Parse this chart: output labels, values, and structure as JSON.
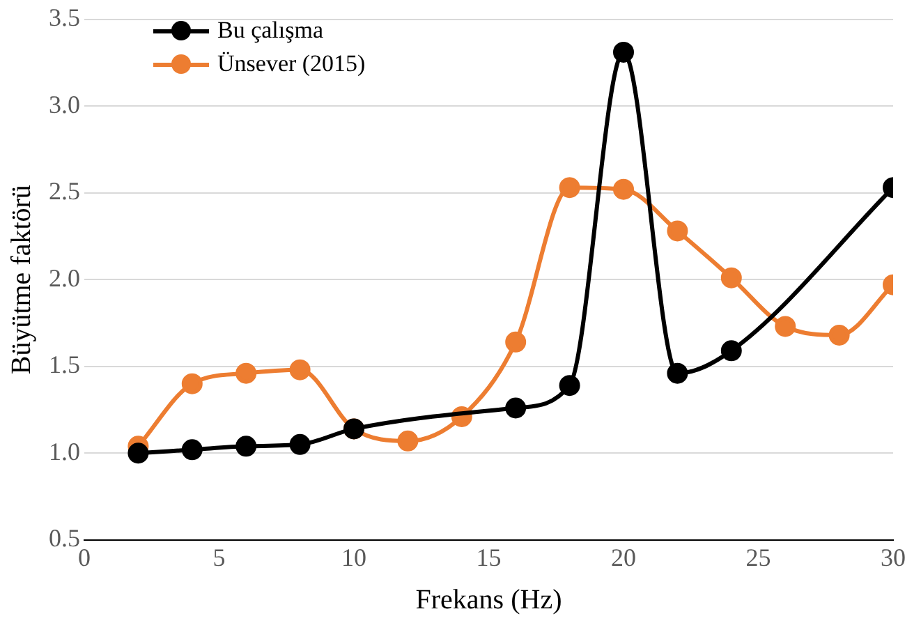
{
  "chart_data": {
    "type": "line",
    "xlabel": "Frekans (Hz)",
    "ylabel": "Büyütme faktörü",
    "xlim": [
      0,
      30
    ],
    "xticks": [
      0,
      5,
      10,
      15,
      20,
      25,
      30
    ],
    "ylim": [
      0.5,
      3.5
    ],
    "yticks": [
      {
        "value": 0.5,
        "label": "0.5"
      },
      {
        "value": 1,
        "label": "1.0"
      },
      {
        "value": 1.5,
        "label": "1.5"
      },
      {
        "value": 2,
        "label": "2.0"
      },
      {
        "value": 2.5,
        "label": "2.5"
      },
      {
        "value": 3,
        "label": "3.0"
      },
      {
        "value": 3.5,
        "label": "3.5"
      }
    ],
    "grid": "y",
    "legend": "top left",
    "marker": "circle",
    "line_style": "solid",
    "series": [
      {
        "name": "Bu çalışma",
        "color": "#000000",
        "x": [
          2,
          4,
          6,
          8,
          10,
          16,
          18,
          20,
          22,
          24,
          30
        ],
        "values": [
          1.0,
          1.02,
          1.04,
          1.05,
          1.14,
          1.26,
          1.39,
          3.31,
          1.46,
          1.59,
          2.53
        ]
      },
      {
        "name": "Ünsever (2015)",
        "color": "#ed7d31",
        "x": [
          2,
          4,
          6,
          8,
          10,
          12,
          14,
          16,
          18,
          20,
          22,
          24,
          26,
          28,
          30
        ],
        "values": [
          1.04,
          1.4,
          1.46,
          1.48,
          1.14,
          1.07,
          1.21,
          1.64,
          2.53,
          2.52,
          2.28,
          2.01,
          1.73,
          1.68,
          1.97
        ]
      }
    ]
  }
}
